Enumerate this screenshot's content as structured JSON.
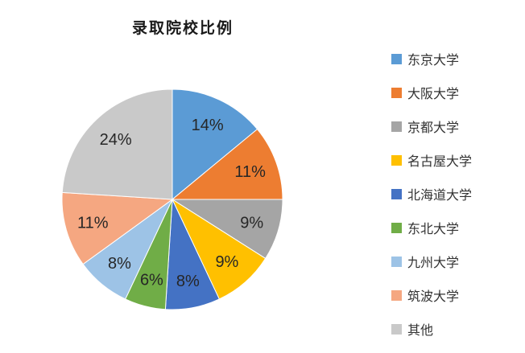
{
  "title": "录取院校比例",
  "chart_data": {
    "type": "pie",
    "title": "录取院校比例",
    "categories": [
      "东京大学",
      "大阪大学",
      "京都大学",
      "名古屋大学",
      "北海道大学",
      "东北大学",
      "九州大学",
      "筑波大学",
      "其他"
    ],
    "values": [
      14,
      11,
      9,
      9,
      8,
      6,
      8,
      11,
      24
    ],
    "unit": "%",
    "slice_labels": [
      "14%",
      "11%",
      "9%",
      "9%",
      "8%",
      "6%",
      "8%",
      "11%",
      "24%"
    ],
    "colors": [
      "#5B9BD5",
      "#ED7D31",
      "#A5A5A5",
      "#FFC000",
      "#4472C4",
      "#70AD47",
      "#9DC3E6",
      "#F5A781",
      "#C9C9C9"
    ],
    "start_angle_deg": 0,
    "direction": "clockwise",
    "legend_position": "right",
    "label_color": "#262626",
    "label_radius_ratio": 0.75,
    "slice_border_color": "#FFFFFF"
  }
}
